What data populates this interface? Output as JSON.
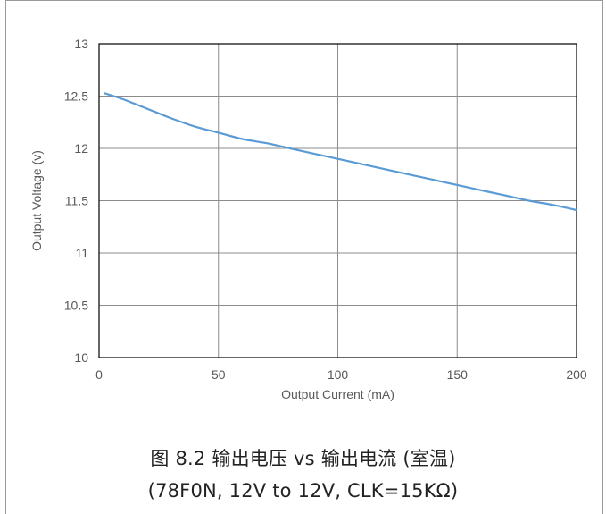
{
  "chart_data": {
    "type": "line",
    "xlabel": "Output Current (mA)",
    "ylabel": "Output Voltage (v)",
    "xlim": [
      0,
      200
    ],
    "ylim": [
      10,
      13
    ],
    "x_ticks": [
      0,
      50,
      100,
      150,
      200
    ],
    "y_ticks": [
      10,
      10.5,
      11,
      11.5,
      12,
      12.5,
      13
    ],
    "grid": true,
    "series": [
      {
        "color": "#5b9bd5",
        "x": [
          2,
          10,
          20,
          30,
          40,
          50,
          60,
          70,
          80,
          90,
          100,
          110,
          120,
          130,
          140,
          150,
          160,
          170,
          180,
          190,
          200
        ],
        "y": [
          12.53,
          12.47,
          12.38,
          12.29,
          12.21,
          12.15,
          12.09,
          12.05,
          12.0,
          11.95,
          11.9,
          11.85,
          11.8,
          11.75,
          11.7,
          11.65,
          11.6,
          11.55,
          11.5,
          11.46,
          11.41
        ]
      }
    ]
  },
  "caption": {
    "line1": "图 8.2 输出电压 vs 输出电流 (室温)",
    "line2": "(78F0N, 12V to 12V, CLK=15KΩ)"
  }
}
